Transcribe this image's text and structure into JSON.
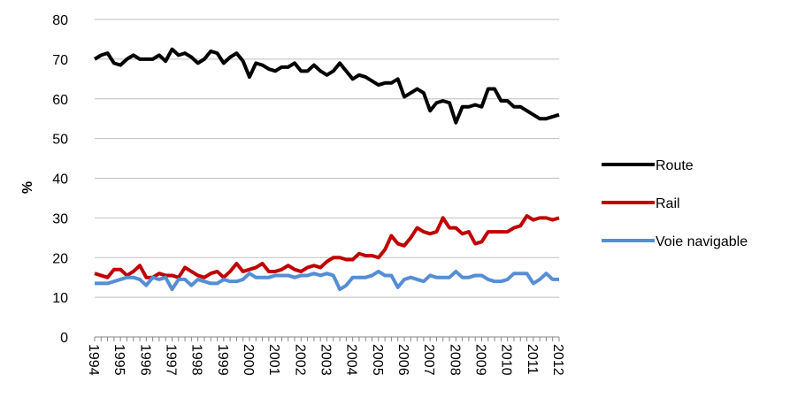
{
  "chart_data": {
    "type": "line",
    "y_label": "%",
    "categories": [
      "1994",
      null,
      null,
      null,
      "1995",
      null,
      null,
      null,
      "1996",
      null,
      null,
      null,
      "1997",
      null,
      null,
      null,
      "1998",
      null,
      null,
      null,
      "1999",
      null,
      null,
      null,
      "2000",
      null,
      null,
      null,
      "2001",
      null,
      null,
      null,
      "2002",
      null,
      null,
      null,
      "2003",
      null,
      null,
      null,
      "2004",
      null,
      null,
      null,
      "2005",
      null,
      null,
      null,
      "2006",
      null,
      null,
      null,
      "2007",
      null,
      null,
      null,
      "2008",
      null,
      null,
      null,
      "2009",
      null,
      null,
      null,
      "2010",
      null,
      null,
      null,
      "2011",
      null,
      null,
      null,
      "2012"
    ],
    "series": [
      {
        "name": "Route",
        "color": "#000000",
        "values": [
          70,
          71,
          71.5,
          69,
          68.5,
          70,
          71,
          70,
          70,
          70,
          71,
          69.5,
          72.5,
          71,
          71.5,
          70.5,
          69,
          70,
          72,
          71.5,
          69,
          70.5,
          71.5,
          69.5,
          65.5,
          69,
          68.5,
          67.5,
          67,
          68,
          68,
          69,
          67,
          67,
          68.5,
          67,
          66,
          67,
          69,
          67,
          65,
          66,
          65.5,
          64.5,
          63.5,
          64,
          64,
          65,
          60.5,
          61.5,
          62.5,
          61.5,
          57,
          59,
          59.5,
          59,
          54,
          58,
          58,
          58.5,
          58,
          62.5,
          62.5,
          59.5,
          59.5,
          58,
          58,
          57,
          56,
          55,
          55,
          55.5,
          56
        ]
      },
      {
        "name": "Rail",
        "color": "#c00000",
        "values": [
          16,
          15.5,
          15,
          17,
          17,
          15.5,
          16.5,
          18,
          15,
          15,
          16,
          15.5,
          15.5,
          15,
          17.5,
          16.5,
          15.5,
          15,
          16,
          16.5,
          15,
          16.5,
          18.5,
          16.5,
          17,
          17.5,
          18.5,
          16.5,
          16.5,
          17,
          18,
          17,
          16.5,
          17.5,
          18,
          17.5,
          19,
          20,
          20,
          19.5,
          19.5,
          21,
          20.5,
          20.5,
          20,
          22,
          25.5,
          23.5,
          23,
          25,
          27.5,
          26.5,
          26,
          26.5,
          30,
          27.5,
          27.5,
          26,
          26.5,
          23.5,
          24,
          26.5,
          26.5,
          26.5,
          26.5,
          27.5,
          28,
          30.5,
          29.5,
          30,
          30,
          29.5,
          30
        ]
      },
      {
        "name": "Voie navigable",
        "color": "#558ed5",
        "values": [
          13.5,
          13.5,
          13.5,
          14,
          14.5,
          15,
          15,
          14.5,
          13,
          15,
          14.5,
          15,
          12,
          14.5,
          14.5,
          13,
          14.5,
          14,
          13.5,
          13.5,
          14.5,
          14,
          14,
          14.5,
          16,
          15,
          15,
          15,
          15.5,
          15.5,
          15.5,
          15,
          15.5,
          15.5,
          16,
          15.5,
          16,
          15.5,
          12,
          13,
          15,
          15,
          15,
          15.5,
          16.5,
          15.5,
          15.5,
          12.5,
          14.5,
          15,
          14.5,
          14,
          15.5,
          15,
          15,
          15,
          16.5,
          15,
          15,
          15.5,
          15.5,
          14.5,
          14,
          14,
          14.5,
          16,
          16,
          16,
          13.5,
          14.5,
          16,
          14.5,
          14.5
        ]
      }
    ],
    "ylim": [
      0,
      80
    ],
    "yticks": [
      0,
      10,
      20,
      30,
      40,
      50,
      60,
      70,
      80
    ],
    "grid": true
  }
}
